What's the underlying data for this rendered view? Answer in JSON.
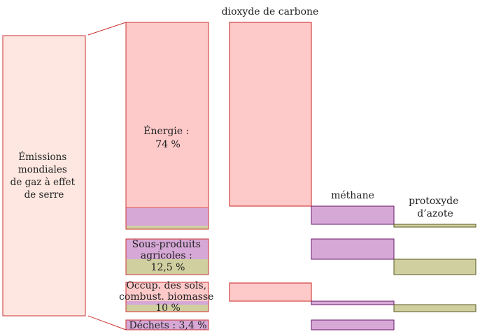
{
  "diagram": {
    "total_label_lines": [
      "Émissions",
      "mondiales",
      "de gaz à effet",
      "de serre"
    ],
    "sectors": {
      "energie": {
        "lines": [
          "Énergie :",
          "74 %"
        ]
      },
      "agricoles": {
        "lines": [
          "Sous-produits",
          "agricoles :",
          "12,5 %"
        ]
      },
      "sols": {
        "lines": [
          "Occup. des sols,",
          "combust. biomasse",
          "10 %"
        ]
      },
      "dechets": {
        "lines": [
          "Déchets : 3,4 %"
        ]
      }
    },
    "gases": {
      "co2": "dioxyde de carbone",
      "ch4": "méthane",
      "n2o_lines": [
        "protoxyde",
        "d’azote"
      ]
    }
  },
  "colors": {
    "co2_fill": "#fdc9c9",
    "co2_stroke": "#cc2222",
    "ch4_fill": "#d6a8d6",
    "ch4_stroke": "#6a1a6a",
    "n2o_fill": "#cfcfa0",
    "n2o_stroke": "#5a5a20",
    "total_fill": "#fde7e0",
    "total_stroke": "#cc3333"
  }
}
